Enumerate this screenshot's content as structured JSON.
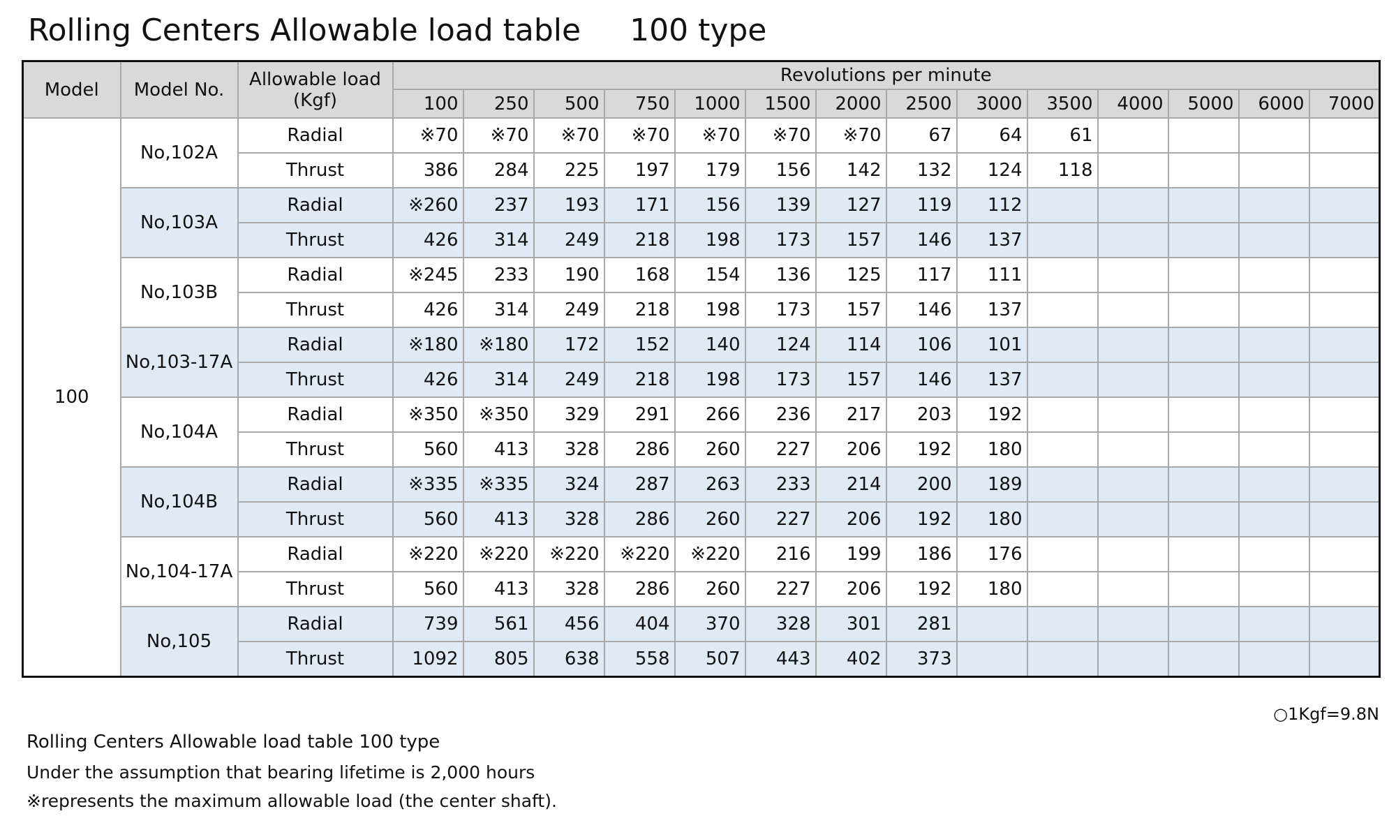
{
  "title": {
    "main": "Rolling Centers Allowable load table",
    "type": "100 type"
  },
  "table": {
    "header": {
      "model": "Model",
      "model_no": "Model No.",
      "load": [
        "Allowable load",
        "(Kgf)"
      ],
      "rpm_title": "Revolutions per minute",
      "rpms": [
        100,
        250,
        500,
        750,
        1000,
        1500,
        2000,
        2500,
        3000,
        3500,
        4000,
        5000,
        6000,
        7000
      ]
    },
    "model": 100,
    "groups": [
      {
        "model_no": "No,102A",
        "rows": [
          {
            "load": "Radial",
            "values": [
              "※70",
              "※70",
              "※70",
              "※70",
              "※70",
              "※70",
              "※70",
              67,
              64,
              61
            ]
          },
          {
            "load": "Thrust",
            "values": [
              386,
              284,
              225,
              197,
              179,
              156,
              142,
              132,
              124,
              118
            ]
          }
        ]
      },
      {
        "model_no": "No,103A",
        "rows": [
          {
            "load": "Radial",
            "values": [
              "※260",
              237,
              193,
              171,
              156,
              139,
              127,
              119,
              112
            ]
          },
          {
            "load": "Thrust",
            "values": [
              426,
              314,
              249,
              218,
              198,
              173,
              157,
              146,
              137
            ]
          }
        ]
      },
      {
        "model_no": "No,103B",
        "rows": [
          {
            "load": "Radial",
            "values": [
              "※245",
              233,
              190,
              168,
              154,
              136,
              125,
              117,
              111
            ]
          },
          {
            "load": "Thrust",
            "values": [
              426,
              314,
              249,
              218,
              198,
              173,
              157,
              146,
              137
            ]
          }
        ]
      },
      {
        "model_no": "No,103-17A",
        "rows": [
          {
            "load": "Radial",
            "values": [
              "※180",
              "※180",
              172,
              152,
              140,
              124,
              114,
              106,
              101
            ]
          },
          {
            "load": "Thrust",
            "values": [
              426,
              314,
              249,
              218,
              198,
              173,
              157,
              146,
              137
            ]
          }
        ]
      },
      {
        "model_no": "No,104A",
        "rows": [
          {
            "load": "Radial",
            "values": [
              "※350",
              "※350",
              329,
              291,
              266,
              236,
              217,
              203,
              192
            ]
          },
          {
            "load": "Thrust",
            "values": [
              560,
              413,
              328,
              286,
              260,
              227,
              206,
              192,
              180
            ]
          }
        ]
      },
      {
        "model_no": "No,104B",
        "rows": [
          {
            "load": "Radial",
            "values": [
              "※335",
              "※335",
              324,
              287,
              263,
              233,
              214,
              200,
              189
            ]
          },
          {
            "load": "Thrust",
            "values": [
              560,
              413,
              328,
              286,
              260,
              227,
              206,
              192,
              180
            ]
          }
        ]
      },
      {
        "model_no": "No,104-17A",
        "rows": [
          {
            "load": "Radial",
            "values": [
              "※220",
              "※220",
              "※220",
              "※220",
              "※220",
              216,
              199,
              186,
              176
            ]
          },
          {
            "load": "Thrust",
            "values": [
              560,
              413,
              328,
              286,
              260,
              227,
              206,
              192,
              180
            ]
          }
        ]
      },
      {
        "model_no": "No,105",
        "rows": [
          {
            "load": "Radial",
            "values": [
              739,
              561,
              456,
              404,
              370,
              328,
              301,
              281
            ]
          },
          {
            "load": "Thrust",
            "values": [
              1092,
              805,
              638,
              558,
              507,
              443,
              402,
              373
            ]
          }
        ]
      }
    ]
  },
  "note": "○1Kgf=9.8N",
  "footer": [
    "Rolling Centers Allowable load table  100 type",
    "Under the assumption that bearing lifetime is 2,000 hours",
    "※represents the maximum allowable load (the center shaft)."
  ]
}
